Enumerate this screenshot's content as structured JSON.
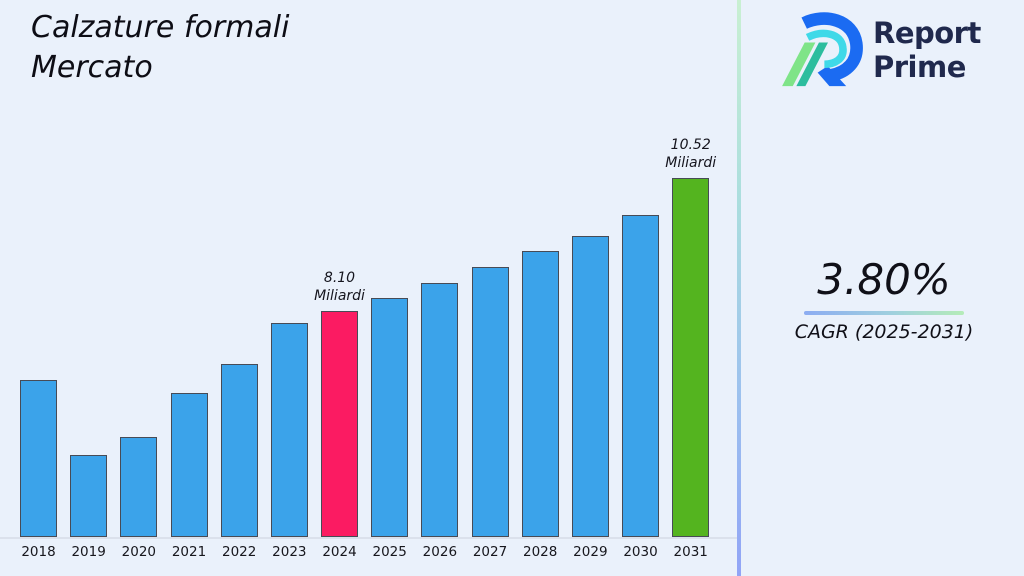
{
  "page": {
    "background": "#eaf1fb"
  },
  "header": {
    "title_line1": "Calzature formali",
    "title_line2": "Mercato"
  },
  "logo": {
    "line1": "Report",
    "line2": "Prime",
    "text_color": "#20294d",
    "mark_colors": {
      "blue": "#1b6bf2",
      "cyan": "#3fd9e8",
      "light_green": "#7fe488",
      "teal": "#2cbd9e"
    }
  },
  "stat": {
    "value": "3.80%",
    "label": "CAGR (2025-2031)"
  },
  "chart_data": {
    "type": "bar",
    "title": "Calzature formali Mercato",
    "categories": [
      "2018",
      "2019",
      "2020",
      "2021",
      "2022",
      "2023",
      "2024",
      "2025",
      "2026",
      "2027",
      "2028",
      "2029",
      "2030",
      "2031"
    ],
    "values": [
      6.85,
      5.48,
      5.81,
      6.61,
      7.14,
      7.88,
      8.1,
      8.34,
      8.61,
      8.9,
      9.19,
      9.47,
      9.85,
      10.52
    ],
    "unit": "Miliardi",
    "xlabel": "",
    "ylabel": "",
    "ylim": [
      4.0,
      11.7
    ],
    "grid": false,
    "legend": false,
    "axis_note": "y-axis truncated (bars start at ~4.0 Miliardi), no visible y-axis ticks",
    "bar_color": "#3ba3ea",
    "highlight_colors": {
      "2024": "#fb1b62",
      "2031": "#54b41f"
    },
    "annotations": [
      {
        "category": "2024",
        "lines": [
          "8.10",
          "Miliardi"
        ]
      },
      {
        "category": "2031",
        "lines": [
          "10.52",
          "Miliardi"
        ]
      }
    ]
  }
}
